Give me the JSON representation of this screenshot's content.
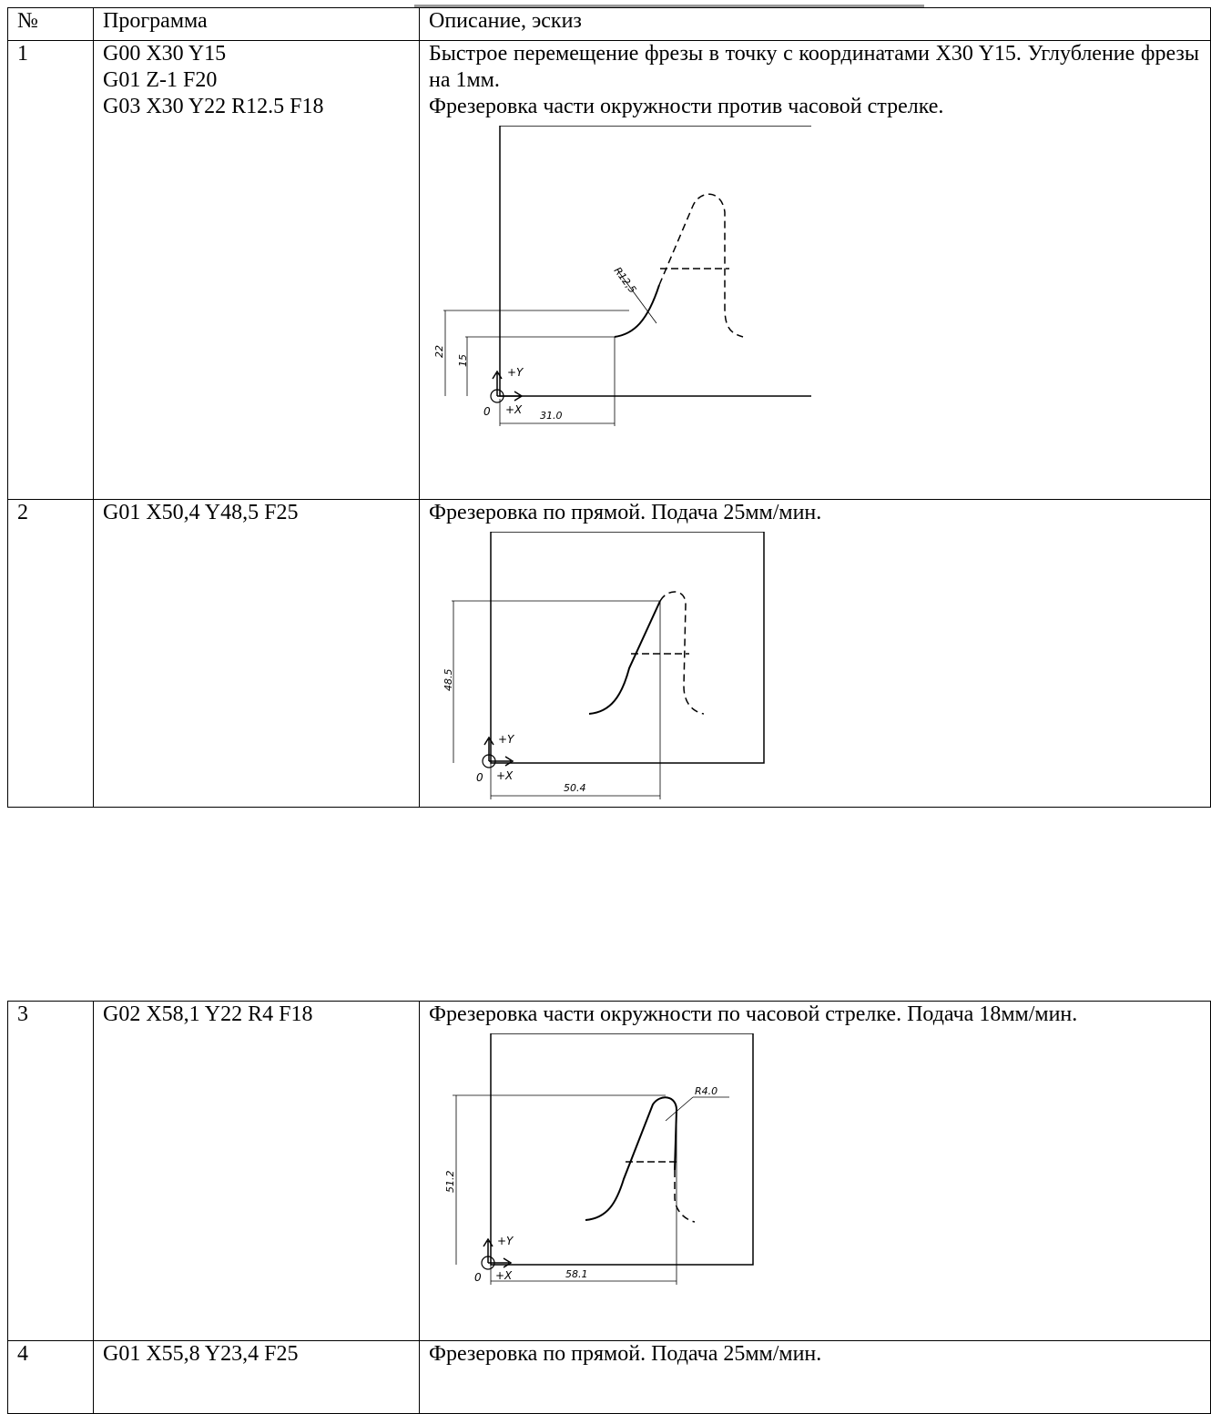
{
  "table1": {
    "header": {
      "num": "№",
      "program": "Программа",
      "description": "Описание, эскиз"
    },
    "rows": [
      {
        "num": "1",
        "program": [
          "G00 X30 Y15",
          "G01 Z-1 F20",
          "G03 X30 Y22 R12.5 F18"
        ],
        "description": [
          "Быстрое перемещение фрезы в точку с координатами X30 Y15. Углубление фрезы на 1мм.",
          "Фрезеровка части окружности против часовой стрелке."
        ],
        "sketch": {
          "dims": [
            "R12,5",
            "22",
            "15",
            "31.0"
          ],
          "axes": {
            "x": "+X",
            "y": "+Y",
            "origin": "0"
          }
        }
      },
      {
        "num": "2",
        "program": [
          "G01 X50,4 Y48,5  F25"
        ],
        "description": [
          "Фрезеровка по прямой. Подача 25мм/мин."
        ],
        "sketch": {
          "dims": [
            "48.5",
            "50.4"
          ],
          "axes": {
            "x": "+X",
            "y": "+Y",
            "origin": "0"
          }
        }
      }
    ]
  },
  "table2": {
    "rows": [
      {
        "num": "3",
        "program": [
          "G02 X58,1 Y22 R4 F18"
        ],
        "description": [
          "Фрезеровка части окружности по часовой стрелке. Подача 18мм/мин."
        ],
        "sketch": {
          "dims": [
            "R4.0",
            "51.2",
            "58.1"
          ],
          "axes": {
            "x": "+X",
            "y": "+Y",
            "origin": "0"
          }
        }
      },
      {
        "num": "4",
        "program": [
          "G01 X55,8 Y23,4  F25"
        ],
        "description": [
          "Фрезеровка по прямой. Подача 25мм/мин."
        ]
      }
    ]
  }
}
